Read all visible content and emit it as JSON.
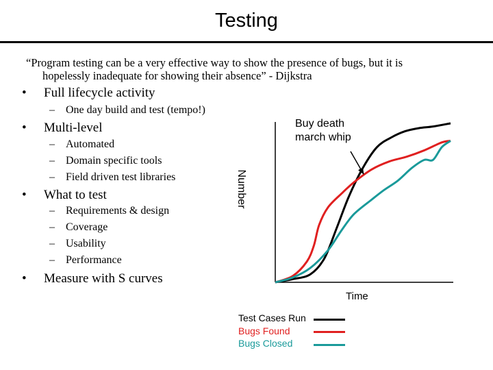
{
  "slide": {
    "title": "Testing",
    "quote_line1": "“Program testing can be a very effective way to show the presence of bugs, but it is",
    "quote_line2": "hopelessly inadequate for showing their absence” - Dijkstra",
    "bullet_glyph": "•",
    "dash_glyph": "–",
    "bullets": [
      {
        "label": "Full lifecycle activity",
        "subs": [
          "One day build and test (tempo!)"
        ]
      },
      {
        "label": "Multi-level",
        "subs": [
          "Automated",
          "Domain specific tools",
          "Field driven test libraries"
        ]
      },
      {
        "label": "What to test",
        "subs": [
          "Requirements & design",
          "Coverage",
          "Usability",
          "Performance"
        ]
      },
      {
        "label": "Measure with S curves",
        "subs": []
      }
    ],
    "annotation_line1": "Buy death",
    "annotation_line2": "march whip"
  },
  "chart_data": {
    "type": "line",
    "xlabel": "Time",
    "ylabel": "Number",
    "x_ticks": false,
    "y_ticks": false,
    "grid": false,
    "legend_position": "bottom",
    "xlim": [
      0,
      100
    ],
    "ylim": [
      0,
      100
    ],
    "series": [
      {
        "name": "Test Cases Run",
        "color": "#000000",
        "x": [
          0,
          10,
          20,
          28,
          35,
          42,
          50,
          58,
          66,
          74,
          82,
          90,
          100
        ],
        "y": [
          0,
          2,
          5,
          15,
          34,
          54,
          72,
          85,
          91,
          95,
          97,
          98,
          100
        ]
      },
      {
        "name": "Bugs Found",
        "color": "#e02020",
        "x": [
          0,
          10,
          18,
          22,
          25,
          30,
          38,
          45,
          55,
          65,
          75,
          85,
          95,
          100
        ],
        "y": [
          0,
          4,
          13,
          23,
          36,
          47,
          56,
          63,
          71,
          76,
          79,
          83,
          88,
          89
        ]
      },
      {
        "name": "Bugs Closed",
        "color": "#1a9a9a",
        "x": [
          0,
          10,
          20,
          30,
          38,
          45,
          55,
          62,
          70,
          78,
          85,
          90,
          95,
          100
        ],
        "y": [
          0,
          3,
          9,
          20,
          33,
          43,
          52,
          58,
          64,
          72,
          77,
          77,
          85,
          89
        ]
      }
    ]
  }
}
